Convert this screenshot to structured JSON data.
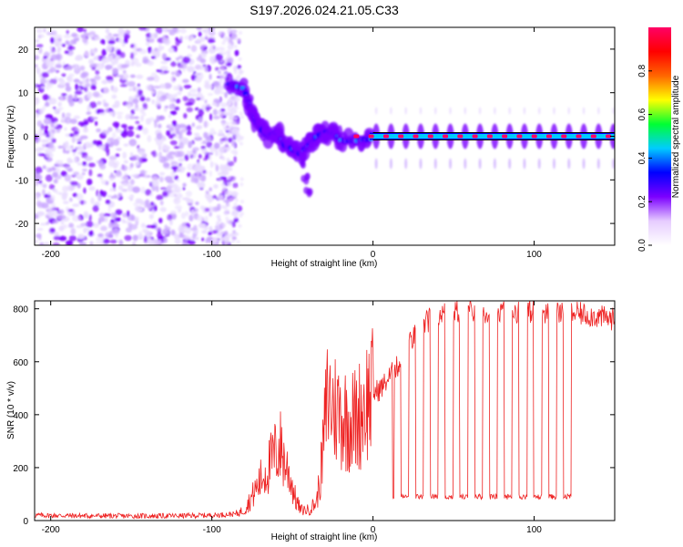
{
  "chart_data": [
    {
      "type": "heatmap",
      "title": "S197.2026.024.21.05.C33",
      "xlabel": "Height of straight line (km)",
      "ylabel": "Frequency (Hz)",
      "xlim": [
        -210,
        150
      ],
      "ylim": [
        -25,
        25
      ],
      "xticks": [
        -200,
        -100,
        0,
        100
      ],
      "yticks": [
        -20,
        -10,
        0,
        10,
        20
      ],
      "colorbar": {
        "label": "Normalized spectral amplitude",
        "range": [
          0.0,
          1.0
        ],
        "ticks": [
          0.0,
          0.2,
          0.4,
          0.6,
          0.8
        ],
        "colormap": [
          "#ffffff",
          "#e6ccff",
          "#7b00ff",
          "#0000ff",
          "#00ccff",
          "#00ff33",
          "#ffff00",
          "#ff6600",
          "#ff0000",
          "#ff0066"
        ]
      },
      "regions": [
        {
          "name": "noise",
          "x_range": [
            -210,
            -83
          ],
          "amplitude": 0.1
        },
        {
          "name": "track",
          "points": [
            [
              -90,
              12
            ],
            [
              -80,
              11
            ],
            [
              -75,
              5
            ],
            [
              -70,
              2
            ],
            [
              -65,
              0
            ],
            [
              -60,
              1
            ],
            [
              -55,
              -2
            ],
            [
              -50,
              -3
            ],
            [
              -45,
              -4
            ],
            [
              -40,
              -2
            ],
            [
              -35,
              0
            ],
            [
              -30,
              1
            ],
            [
              -25,
              1
            ],
            [
              -20,
              -1
            ],
            [
              -10,
              -1
            ],
            [
              0,
              -0.5
            ]
          ],
          "amplitude": 0.35
        },
        {
          "name": "tail",
          "points": [
            [
              -45,
              -6
            ],
            [
              -42,
              -10
            ],
            [
              -40,
              -13
            ]
          ],
          "amplitude": 0.1
        },
        {
          "name": "carrier",
          "x_range": [
            0,
            150
          ],
          "frequency": 0,
          "amplitude": 0.95
        }
      ]
    },
    {
      "type": "line",
      "xlabel": "Height of straight line (km)",
      "ylabel": "SNR (10 * v/v)",
      "xlim": [
        -210,
        150
      ],
      "ylim": [
        0,
        830
      ],
      "xticks": [
        -200,
        -100,
        0,
        100
      ],
      "yticks": [
        0,
        200,
        400,
        600,
        800
      ],
      "color": "#ee2222",
      "series": [
        {
          "name": "SNR",
          "x": [
            -210,
            -180,
            -150,
            -120,
            -100,
            -85,
            -80,
            -75,
            -70,
            -65,
            -60,
            -57,
            -55,
            -52,
            -50,
            -48,
            -45,
            -40,
            -35,
            -32,
            -30,
            -28,
            -25,
            -22,
            -20,
            -15,
            -10,
            -5,
            0,
            5,
            10,
            15,
            20,
            25,
            30,
            35,
            40,
            50,
            60,
            80,
            100,
            120,
            130,
            140,
            150
          ],
          "y": [
            20,
            18,
            17,
            18,
            20,
            25,
            40,
            90,
            150,
            200,
            260,
            280,
            220,
            180,
            130,
            80,
            40,
            40,
            70,
            200,
            350,
            480,
            430,
            420,
            400,
            380,
            380,
            450,
            480,
            500,
            540,
            580,
            640,
            690,
            730,
            760,
            780,
            790,
            790,
            790,
            790,
            785,
            780,
            770,
            760
          ]
        }
      ],
      "dropouts": {
        "x_start": 14,
        "x_end": 124,
        "count": 13,
        "level": 90
      }
    }
  ]
}
